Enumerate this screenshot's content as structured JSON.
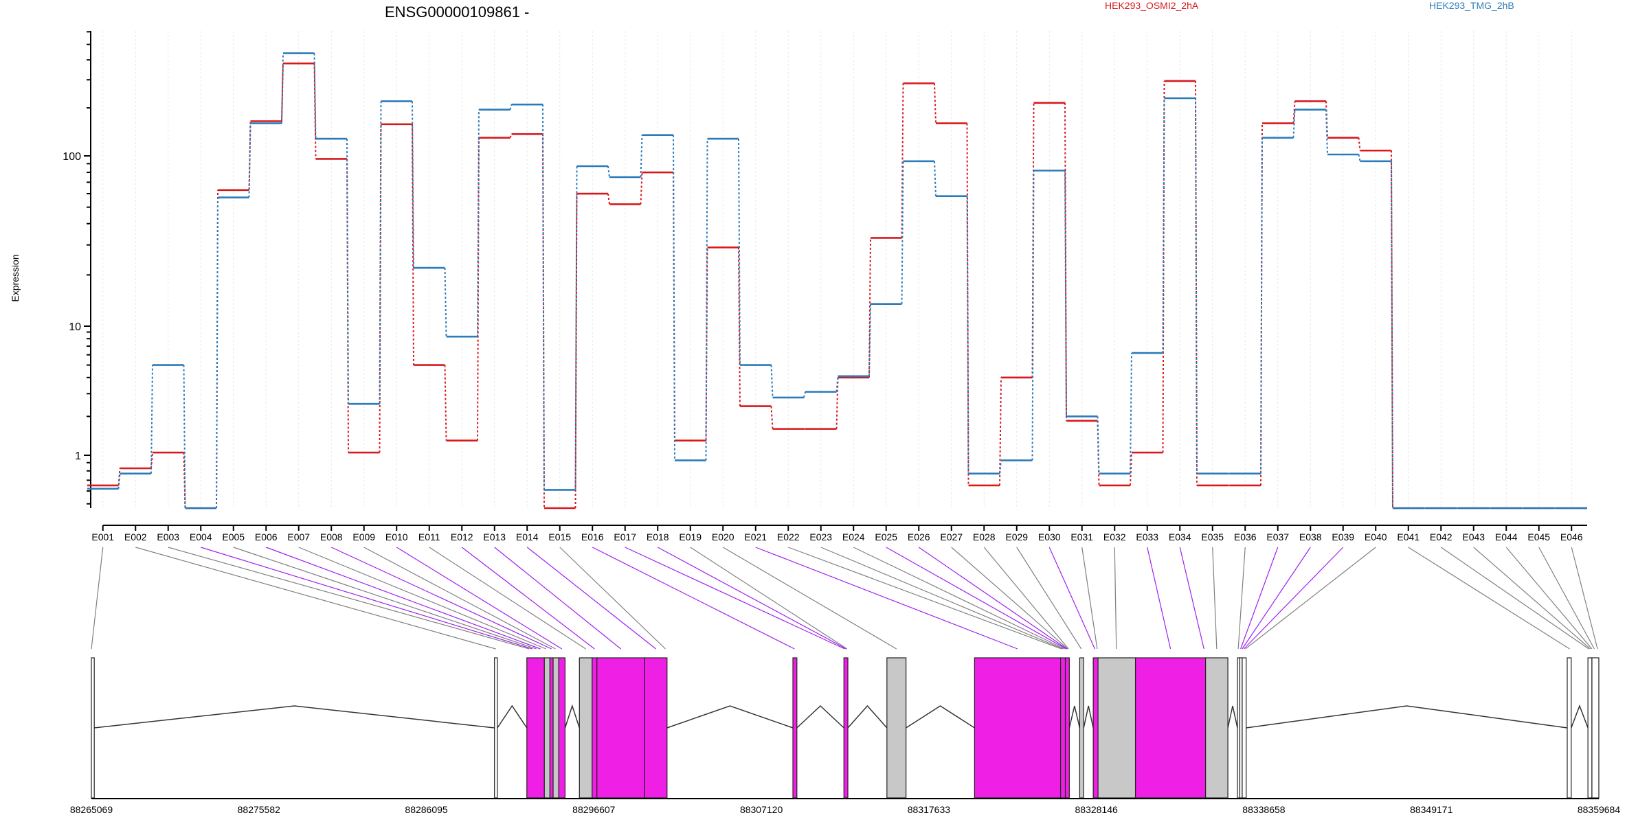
{
  "chart_data": {
    "type": "line",
    "title": "ENSG00000109861 -",
    "xlabel": "",
    "ylabel": "Expression",
    "yscale": "log",
    "ylim": [
      0.47,
      620
    ],
    "y_ticks": [
      1,
      10,
      100
    ],
    "y_tick_labels": [
      "1",
      "10",
      "100"
    ],
    "grid": "vertical-dotted",
    "legend_position": "top",
    "categories": [
      "E001",
      "E002",
      "E003",
      "E004",
      "E005",
      "E006",
      "E007",
      "E008",
      "E009",
      "E010",
      "E011",
      "E012",
      "E013",
      "E014",
      "E015",
      "E016",
      "E017",
      "E018",
      "E019",
      "E020",
      "E021",
      "E022",
      "E023",
      "E024",
      "E025",
      "E026",
      "E027",
      "E028",
      "E029",
      "E030",
      "E031",
      "E032",
      "E033",
      "E034",
      "E035",
      "E036",
      "E037",
      "E038",
      "E039",
      "E040",
      "E041",
      "E042",
      "E043",
      "E044",
      "E045",
      "E046"
    ],
    "series": [
      {
        "name": "HEK293_OSMI2_2hA",
        "color": "#d7191c",
        "values": [
          0.65,
          0.83,
          1.05,
          0.47,
          63,
          165,
          380,
          96,
          1.05,
          158,
          5,
          1.3,
          130,
          137,
          0.47,
          60,
          52,
          80,
          1.3,
          29,
          2.4,
          1.6,
          1.6,
          4,
          33,
          285,
          160,
          0.65,
          4,
          215,
          1.85,
          0.65,
          1.05,
          295,
          0.65,
          0.65,
          160,
          220,
          130,
          108,
          0.47,
          0.47,
          0.47,
          0.47,
          0.47,
          0.47
        ]
      },
      {
        "name": "HEK293_TMG_2hB",
        "color": "#2b7bba",
        "values": [
          0.62,
          0.77,
          5,
          0.47,
          57,
          160,
          440,
          128,
          2.5,
          220,
          22,
          8.3,
          195,
          210,
          0.61,
          87,
          75,
          135,
          0.93,
          128,
          5,
          2.8,
          3.1,
          4.1,
          13.5,
          93,
          58,
          0.77,
          0.93,
          82,
          2,
          0.77,
          6.2,
          230,
          0.77,
          0.77,
          130,
          195,
          102,
          93,
          0.47,
          0.47,
          0.47,
          0.47,
          0.47,
          0.47
        ]
      }
    ],
    "gene_model": {
      "coordinate_labels": [
        "88265069",
        "88275582",
        "88286095",
        "88296607",
        "88307120",
        "88317633",
        "88328146",
        "88338658",
        "88349171",
        "88359684"
      ],
      "genomic_range": [
        88265069,
        88359684
      ],
      "exon_segments": [
        {
          "start": 88265069,
          "end": 88265250,
          "fill": "#ffffff"
        },
        {
          "start": 88290370,
          "end": 88290550,
          "fill": "#ffffff"
        },
        {
          "start": 88292400,
          "end": 88293500,
          "fill": "#f01fe6"
        },
        {
          "start": 88293500,
          "end": 88293850,
          "fill": "#c8c8c8"
        },
        {
          "start": 88293850,
          "end": 88294050,
          "fill": "#f01fe6"
        },
        {
          "start": 88294050,
          "end": 88294400,
          "fill": "#c8c8c8"
        },
        {
          "start": 88294400,
          "end": 88294800,
          "fill": "#f01fe6"
        },
        {
          "start": 88295700,
          "end": 88296500,
          "fill": "#c8c8c8"
        },
        {
          "start": 88296500,
          "end": 88296800,
          "fill": "#f01fe6"
        },
        {
          "start": 88296800,
          "end": 88299800,
          "fill": "#f01fe6"
        },
        {
          "start": 88299800,
          "end": 88301200,
          "fill": "#f01fe6"
        },
        {
          "start": 88309100,
          "end": 88309350,
          "fill": "#f01fe6"
        },
        {
          "start": 88312300,
          "end": 88312550,
          "fill": "#f01fe6"
        },
        {
          "start": 88315000,
          "end": 88316200,
          "fill": "#c8c8c8"
        },
        {
          "start": 88320500,
          "end": 88325900,
          "fill": "#f01fe6"
        },
        {
          "start": 88325900,
          "end": 88326200,
          "fill": "#f01fe6"
        },
        {
          "start": 88326200,
          "end": 88326450,
          "fill": "#f01fe6"
        },
        {
          "start": 88327100,
          "end": 88327350,
          "fill": "#c8c8c8"
        },
        {
          "start": 88327950,
          "end": 88328250,
          "fill": "#f01fe6"
        },
        {
          "start": 88328250,
          "end": 88330600,
          "fill": "#c8c8c8"
        },
        {
          "start": 88330600,
          "end": 88335000,
          "fill": "#f01fe6"
        },
        {
          "start": 88335000,
          "end": 88336400,
          "fill": "#c8c8c8"
        },
        {
          "start": 88337000,
          "end": 88337150,
          "fill": "#ffffff"
        },
        {
          "start": 88337150,
          "end": 88337300,
          "fill": "#ffffff"
        },
        {
          "start": 88337300,
          "end": 88337550,
          "fill": "#ffffff"
        },
        {
          "start": 88357700,
          "end": 88357950,
          "fill": "#ffffff"
        },
        {
          "start": 88359000,
          "end": 88359250,
          "fill": "#ffffff"
        },
        {
          "start": 88359250,
          "end": 88359684,
          "fill": "#ffffff"
        }
      ],
      "exon_links": [
        {
          "bin": "E001",
          "pos": 88265069,
          "color": "#808080"
        },
        {
          "bin": "E002",
          "pos": 88290450,
          "color": "#808080"
        },
        {
          "bin": "E003",
          "pos": 88292550,
          "color": "#808080"
        },
        {
          "bin": "E004",
          "pos": 88292750,
          "color": "#a020f0"
        },
        {
          "bin": "E005",
          "pos": 88293000,
          "color": "#808080"
        },
        {
          "bin": "E006",
          "pos": 88293250,
          "color": "#a020f0"
        },
        {
          "bin": "E007",
          "pos": 88293600,
          "color": "#808080"
        },
        {
          "bin": "E008",
          "pos": 88293950,
          "color": "#a020f0"
        },
        {
          "bin": "E009",
          "pos": 88294200,
          "color": "#808080"
        },
        {
          "bin": "E010",
          "pos": 88294600,
          "color": "#a020f0"
        },
        {
          "bin": "E011",
          "pos": 88296100,
          "color": "#808080"
        },
        {
          "bin": "E012",
          "pos": 88296650,
          "color": "#a020f0"
        },
        {
          "bin": "E013",
          "pos": 88298300,
          "color": "#a020f0"
        },
        {
          "bin": "E014",
          "pos": 88300500,
          "color": "#a020f0"
        },
        {
          "bin": "E015",
          "pos": 88301100,
          "color": "#808080"
        },
        {
          "bin": "E016",
          "pos": 88309200,
          "color": "#a020f0"
        },
        {
          "bin": "E017",
          "pos": 88312350,
          "color": "#a020f0"
        },
        {
          "bin": "E018",
          "pos": 88312450,
          "color": "#a020f0"
        },
        {
          "bin": "E019",
          "pos": 88312500,
          "color": "#808080"
        },
        {
          "bin": "E020",
          "pos": 88315600,
          "color": "#808080"
        },
        {
          "bin": "E021",
          "pos": 88323200,
          "color": "#a020f0"
        },
        {
          "bin": "E022",
          "pos": 88325950,
          "color": "#808080"
        },
        {
          "bin": "E023",
          "pos": 88326050,
          "color": "#808080"
        },
        {
          "bin": "E024",
          "pos": 88326150,
          "color": "#808080"
        },
        {
          "bin": "E025",
          "pos": 88326250,
          "color": "#a020f0"
        },
        {
          "bin": "E026",
          "pos": 88326300,
          "color": "#a020f0"
        },
        {
          "bin": "E027",
          "pos": 88326350,
          "color": "#808080"
        },
        {
          "bin": "E028",
          "pos": 88326400,
          "color": "#808080"
        },
        {
          "bin": "E029",
          "pos": 88327200,
          "color": "#808080"
        },
        {
          "bin": "E030",
          "pos": 88328050,
          "color": "#a020f0"
        },
        {
          "bin": "E031",
          "pos": 88328200,
          "color": "#808080"
        },
        {
          "bin": "E032",
          "pos": 88329400,
          "color": "#808080"
        },
        {
          "bin": "E033",
          "pos": 88332800,
          "color": "#a020f0"
        },
        {
          "bin": "E034",
          "pos": 88334900,
          "color": "#a020f0"
        },
        {
          "bin": "E035",
          "pos": 88335700,
          "color": "#808080"
        },
        {
          "bin": "E036",
          "pos": 88337050,
          "color": "#808080"
        },
        {
          "bin": "E037",
          "pos": 88337200,
          "color": "#a020f0"
        },
        {
          "bin": "E038",
          "pos": 88337300,
          "color": "#a020f0"
        },
        {
          "bin": "E039",
          "pos": 88337400,
          "color": "#a020f0"
        },
        {
          "bin": "E040",
          "pos": 88337500,
          "color": "#808080"
        },
        {
          "bin": "E041",
          "pos": 88357850,
          "color": "#808080"
        },
        {
          "bin": "E042",
          "pos": 88359050,
          "color": "#808080"
        },
        {
          "bin": "E043",
          "pos": 88359150,
          "color": "#808080"
        },
        {
          "bin": "E044",
          "pos": 88359250,
          "color": "#808080"
        },
        {
          "bin": "E045",
          "pos": 88359400,
          "color": "#808080"
        },
        {
          "bin": "E046",
          "pos": 88359600,
          "color": "#808080"
        }
      ]
    }
  }
}
